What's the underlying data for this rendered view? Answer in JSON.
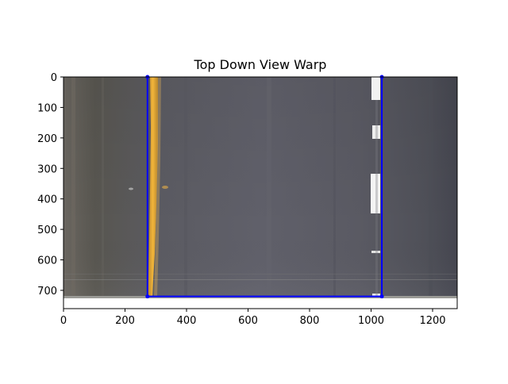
{
  "chart_data": {
    "type": "image",
    "title": "Top Down View Warp",
    "xlabel": "",
    "ylabel": "",
    "xlim": [
      0,
      1280
    ],
    "ylim": [
      760,
      0
    ],
    "image_extent": {
      "width": 1280,
      "height": 720
    },
    "x_ticks": [
      0,
      200,
      400,
      600,
      800,
      1000,
      1200
    ],
    "y_ticks": [
      0,
      100,
      200,
      300,
      400,
      500,
      600,
      700
    ],
    "overlay": {
      "color": "#0000ff",
      "points": [
        [
          273,
          0
        ],
        [
          273,
          720
        ],
        [
          1035,
          720
        ],
        [
          1035,
          0
        ]
      ]
    },
    "grid": false
  },
  "colors": {
    "road": "#5d5d66",
    "yellow_line": "#e5a52c",
    "white_dash": "#f0f0f0",
    "overlay": "#0000ff"
  }
}
